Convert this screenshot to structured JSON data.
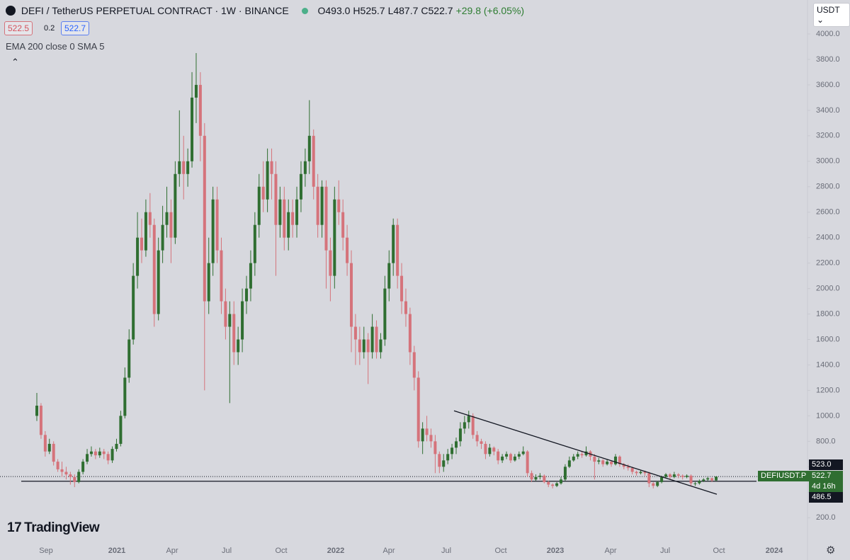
{
  "header": {
    "symbol": "DEFI / TetherUS PERPETUAL CONTRACT · 1W · BINANCE",
    "ohlc": [
      "O493.0",
      "H525.7",
      "L487.7",
      "C522.7"
    ],
    "change": "+29.8 (+6.05%)",
    "bid": "522.5",
    "spread": "0.2",
    "ask": "522.7",
    "indicator": "EMA 200 close 0 SMA 5",
    "currency": "USDT",
    "brand": "TradingView"
  },
  "chart_data": {
    "type": "candlestick",
    "up_color": "#2f6e31",
    "down_color": "#d5737b",
    "open": [
      1000,
      1080,
      850,
      720,
      780,
      640,
      580,
      560,
      540,
      520,
      480,
      560,
      640,
      700,
      720,
      690,
      720,
      700,
      650,
      740,
      780,
      1000,
      1300,
      1600,
      2100,
      2400,
      2300,
      2600,
      2500,
      1800,
      2300,
      2500,
      2600,
      2400,
      2900,
      3000,
      2900,
      3000,
      3500,
      3600,
      3200,
      1900,
      2200,
      2700,
      2300,
      1900,
      1700,
      1800,
      1500,
      1600,
      1900,
      2000,
      2200,
      2500,
      2800,
      2700,
      3000,
      2900,
      2500,
      2700,
      2400,
      2600,
      2500,
      2700,
      2900,
      3000,
      3200,
      2800,
      2500,
      2800,
      2300,
      2100,
      2700,
      2600,
      2400,
      2200,
      1700,
      1600,
      1500,
      1600,
      1500,
      1700,
      1500,
      1600,
      2000,
      2200,
      2500,
      2100,
      1900,
      1800,
      1500,
      1300,
      800,
      900,
      850,
      800,
      700,
      600,
      650,
      700,
      750,
      800,
      900,
      950,
      1000,
      850,
      800,
      780,
      700,
      750,
      720,
      650,
      680,
      700,
      650,
      680,
      700,
      720,
      550,
      500,
      520,
      530,
      480,
      460,
      450,
      470,
      500,
      600,
      650,
      680,
      700,
      690,
      720,
      680,
      640,
      650,
      620,
      640,
      620,
      680,
      620,
      600,
      590,
      560,
      550,
      560,
      550,
      470,
      450,
      480,
      520,
      540,
      520,
      540,
      530,
      520,
      530,
      470,
      470,
      490,
      500,
      510,
      493.0
    ],
    "high": [
      1180,
      1100,
      880,
      820,
      800,
      660,
      640,
      600,
      560,
      540,
      580,
      660,
      740,
      760,
      740,
      750,
      740,
      720,
      760,
      820,
      1040,
      1380,
      1680,
      2200,
      2600,
      2550,
      2700,
      2750,
      2550,
      2400,
      2650,
      2800,
      2700,
      3000,
      3400,
      3200,
      3100,
      3700,
      3850,
      3700,
      3300,
      2400,
      2800,
      2800,
      2400,
      2000,
      1900,
      1900,
      1700,
      2000,
      2100,
      2300,
      2600,
      2900,
      3000,
      3100,
      3100,
      3000,
      2800,
      2800,
      2700,
      2700,
      2800,
      3000,
      3100,
      3480,
      3250,
      2900,
      2850,
      2850,
      2400,
      2800,
      2850,
      2700,
      2500,
      2300,
      1800,
      1700,
      1700,
      1650,
      1800,
      1750,
      1650,
      2100,
      2300,
      2550,
      2550,
      2200,
      2000,
      1850,
      1550,
      1350,
      950,
      1000,
      900,
      850,
      720,
      700,
      740,
      780,
      830,
      950,
      1000,
      1040,
      1020,
      880,
      820,
      800,
      780,
      760,
      740,
      700,
      720,
      710,
      700,
      720,
      760,
      730,
      570,
      540,
      550,
      540,
      490,
      470,
      480,
      520,
      620,
      680,
      700,
      720,
      720,
      760,
      730,
      700,
      670,
      660,
      660,
      650,
      700,
      690,
      630,
      620,
      600,
      570,
      570,
      570,
      560,
      480,
      490,
      530,
      550,
      550,
      560,
      550,
      540,
      540,
      540,
      480,
      500,
      510,
      520,
      515,
      525.7
    ],
    "low": [
      960,
      820,
      680,
      700,
      610,
      560,
      520,
      500,
      460,
      440,
      470,
      540,
      620,
      680,
      660,
      670,
      660,
      620,
      630,
      720,
      760,
      980,
      1260,
      1560,
      2000,
      2200,
      2250,
      2400,
      1700,
      1750,
      2200,
      2400,
      2200,
      2350,
      2800,
      2700,
      2800,
      2950,
      3300,
      3000,
      1200,
      1800,
      2100,
      2200,
      1800,
      1600,
      1100,
      1400,
      1400,
      1500,
      1800,
      1900,
      2100,
      2400,
      2600,
      2600,
      2700,
      2100,
      2400,
      2300,
      2300,
      2400,
      2400,
      2600,
      2800,
      2900,
      2700,
      2400,
      2400,
      2000,
      1900,
      2000,
      2500,
      2300,
      2100,
      1500,
      1400,
      1400,
      1450,
      1250,
      1450,
      1450,
      1450,
      1550,
      1900,
      2100,
      2000,
      1800,
      1700,
      1400,
      1200,
      750,
      700,
      800,
      750,
      550,
      550,
      560,
      620,
      660,
      700,
      760,
      860,
      900,
      820,
      760,
      740,
      660,
      680,
      690,
      620,
      630,
      660,
      630,
      640,
      660,
      690,
      520,
      480,
      490,
      500,
      470,
      440,
      430,
      440,
      460,
      490,
      590,
      640,
      660,
      670,
      680,
      650,
      500,
      620,
      600,
      610,
      600,
      610,
      600,
      580,
      570,
      540,
      530,
      540,
      530,
      440,
      430,
      440,
      470,
      510,
      500,
      510,
      510,
      500,
      510,
      450,
      450,
      460,
      480,
      490,
      480,
      487.7
    ],
    "close": [
      1080,
      850,
      720,
      780,
      640,
      580,
      560,
      540,
      520,
      480,
      560,
      640,
      700,
      720,
      690,
      720,
      700,
      650,
      740,
      780,
      1000,
      1300,
      1600,
      2100,
      2400,
      2300,
      2600,
      2500,
      1800,
      2300,
      2500,
      2600,
      2400,
      2900,
      3000,
      2900,
      3000,
      3500,
      3600,
      3200,
      1900,
      2200,
      2700,
      2300,
      1900,
      1700,
      1800,
      1500,
      1600,
      1900,
      2000,
      2200,
      2500,
      2800,
      2700,
      3000,
      2900,
      2500,
      2700,
      2400,
      2600,
      2500,
      2700,
      2900,
      3000,
      3200,
      2800,
      2500,
      2800,
      2300,
      2100,
      2700,
      2600,
      2400,
      2200,
      1700,
      1600,
      1500,
      1600,
      1500,
      1700,
      1500,
      1600,
      2000,
      2200,
      2500,
      2100,
      1900,
      1800,
      1500,
      1300,
      800,
      900,
      850,
      800,
      700,
      600,
      650,
      700,
      750,
      800,
      900,
      950,
      1000,
      850,
      800,
      780,
      700,
      750,
      720,
      650,
      680,
      700,
      650,
      680,
      700,
      720,
      550,
      500,
      520,
      530,
      480,
      460,
      450,
      470,
      500,
      600,
      650,
      680,
      700,
      690,
      720,
      680,
      640,
      650,
      620,
      640,
      620,
      680,
      620,
      600,
      590,
      560,
      550,
      560,
      550,
      470,
      450,
      480,
      520,
      540,
      520,
      540,
      530,
      520,
      530,
      470,
      470,
      490,
      500,
      510,
      493.0,
      522.7
    ],
    "ylim": [
      40,
      4100
    ],
    "yticks": [
      {
        "value": 200,
        "label": "200.0"
      },
      {
        "value": 400,
        "label": "400.0"
      },
      {
        "value": 600,
        "label": "600.0"
      },
      {
        "value": 800,
        "label": "800.0"
      },
      {
        "value": 1000,
        "label": "1000.0"
      },
      {
        "value": 1200,
        "label": "1200.0"
      },
      {
        "value": 1400,
        "label": "1400.0"
      },
      {
        "value": 1600,
        "label": "1600.0"
      },
      {
        "value": 1800,
        "label": "1800.0"
      },
      {
        "value": 2000,
        "label": "2000.0"
      },
      {
        "value": 2200,
        "label": "2200.0"
      },
      {
        "value": 2400,
        "label": "2400.0"
      },
      {
        "value": 2600,
        "label": "2600.0"
      },
      {
        "value": 2800,
        "label": "2800.0"
      },
      {
        "value": 3000,
        "label": "3000.0"
      },
      {
        "value": 3200,
        "label": "3200.0"
      },
      {
        "value": 3400,
        "label": "3400.0"
      },
      {
        "value": 3600,
        "label": "3600.0"
      },
      {
        "value": 3800,
        "label": "3800.0"
      },
      {
        "value": 4000,
        "label": "4000.0"
      }
    ],
    "x_labels": [
      "Sep",
      "2021",
      "Apr",
      "Jul",
      "Oct",
      "2022",
      "Apr",
      "Jul",
      "Oct",
      "2023",
      "Apr",
      "Jul",
      "Oct",
      "2024"
    ],
    "price_lines": [
      {
        "value": 523.0,
        "label": "523.0"
      },
      {
        "value": 486.5,
        "label": "486.5"
      }
    ],
    "last_price": {
      "symbol": "DEFIUSDT.P",
      "label": "522.7",
      "countdown": "4d 16h"
    },
    "trendline": {
      "start": 1040,
      "end": 384
    }
  }
}
